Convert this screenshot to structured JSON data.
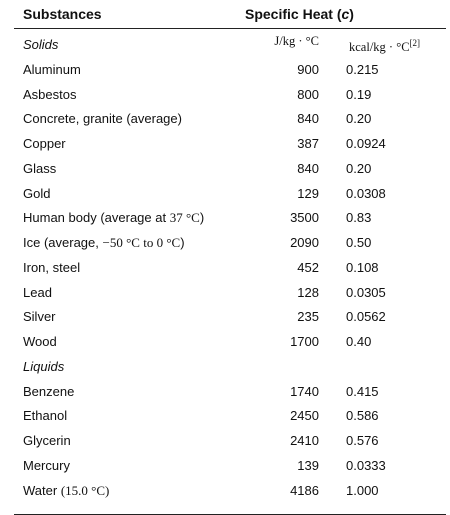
{
  "header": {
    "substances": "Substances",
    "specific_heat": "Specific Heat (",
    "symbol": "c",
    "close": ")"
  },
  "units": {
    "j": "J/kg · °C",
    "k": "kcal/kg · °C",
    "k_note": "[2]"
  },
  "rows": [
    {
      "name": "Solids",
      "section": true
    },
    {
      "name": "Aluminum",
      "j": "900",
      "k": "0.215"
    },
    {
      "name": "Asbestos",
      "j": "800",
      "k": "0.19"
    },
    {
      "name": "Concrete, granite (average)",
      "j": "840",
      "k": "0.20"
    },
    {
      "name": "Copper",
      "j": "387",
      "k": "0.0924"
    },
    {
      "name": "Glass",
      "j": "840",
      "k": "0.20"
    },
    {
      "name": "Gold",
      "j": "129",
      "k": "0.0308"
    },
    {
      "name": "Human body (average at ",
      "math": "37 °C",
      "tail": ")",
      "j": "3500",
      "k": "0.83"
    },
    {
      "name": "Ice (average, ",
      "math": "−50 °C to 0 °C",
      "tail": ")",
      "j": "2090",
      "k": "0.50"
    },
    {
      "name": "Iron, steel",
      "j": "452",
      "k": "0.108"
    },
    {
      "name": "Lead",
      "j": "128",
      "k": "0.0305"
    },
    {
      "name": "Silver",
      "j": "235",
      "k": "0.0562"
    },
    {
      "name": "Wood",
      "j": "1700",
      "k": "0.40"
    },
    {
      "name": "Liquids",
      "section": true
    },
    {
      "name": "Benzene",
      "j": "1740",
      "k": "0.415"
    },
    {
      "name": "Ethanol",
      "j": "2450",
      "k": "0.586"
    },
    {
      "name": "Glycerin",
      "j": "2410",
      "k": "0.576"
    },
    {
      "name": "Mercury",
      "j": "139",
      "k": "0.0333"
    },
    {
      "name": "Water ",
      "math": "(15.0 °C)",
      "tail": "",
      "j": "4186",
      "k": "1.000"
    }
  ]
}
